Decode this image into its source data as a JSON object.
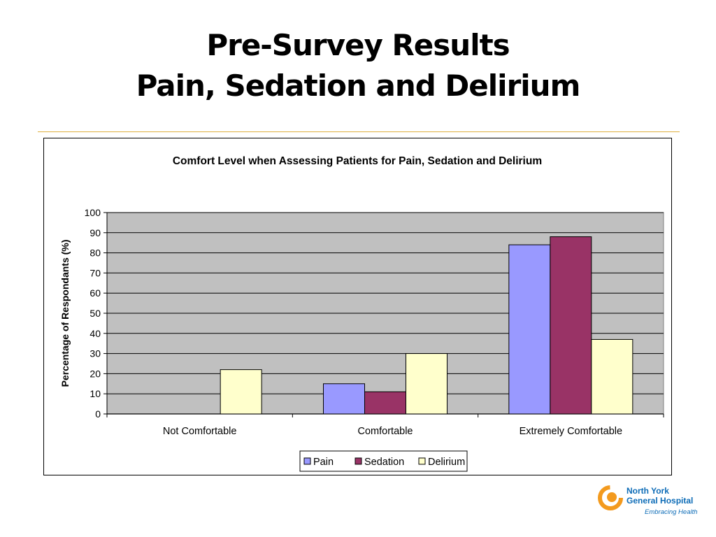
{
  "slide": {
    "title_line1": "Pre-Survey Results",
    "title_line2": "Pain, Sedation and Delirium"
  },
  "logo": {
    "name_line1": "North York",
    "name_line2": "General Hospital",
    "tagline": "Embracing Health",
    "colors": {
      "orange": "#f39a1e",
      "blue": "#0d6cb7"
    }
  },
  "chart_data": {
    "type": "bar",
    "title": "Comfort Level when Assessing Patients for Pain, Sedation and Delirium",
    "xlabel": "",
    "ylabel": "Percentage of Respondants (%)",
    "ylim": [
      0,
      100
    ],
    "yticks": [
      0,
      10,
      20,
      30,
      40,
      50,
      60,
      70,
      80,
      90,
      100
    ],
    "grid": true,
    "legend_position": "bottom",
    "plot_background": "#c0c0c0",
    "categories": [
      "Not Comfortable",
      "Comfortable",
      "Extremely Comfortable"
    ],
    "series": [
      {
        "name": "Pain",
        "color": "#9999ff",
        "values": [
          0,
          15,
          84
        ]
      },
      {
        "name": "Sedation",
        "color": "#993366",
        "values": [
          0,
          11,
          88
        ]
      },
      {
        "name": "Delirium",
        "color": "#ffffcc",
        "values": [
          22,
          30,
          37
        ]
      }
    ]
  }
}
